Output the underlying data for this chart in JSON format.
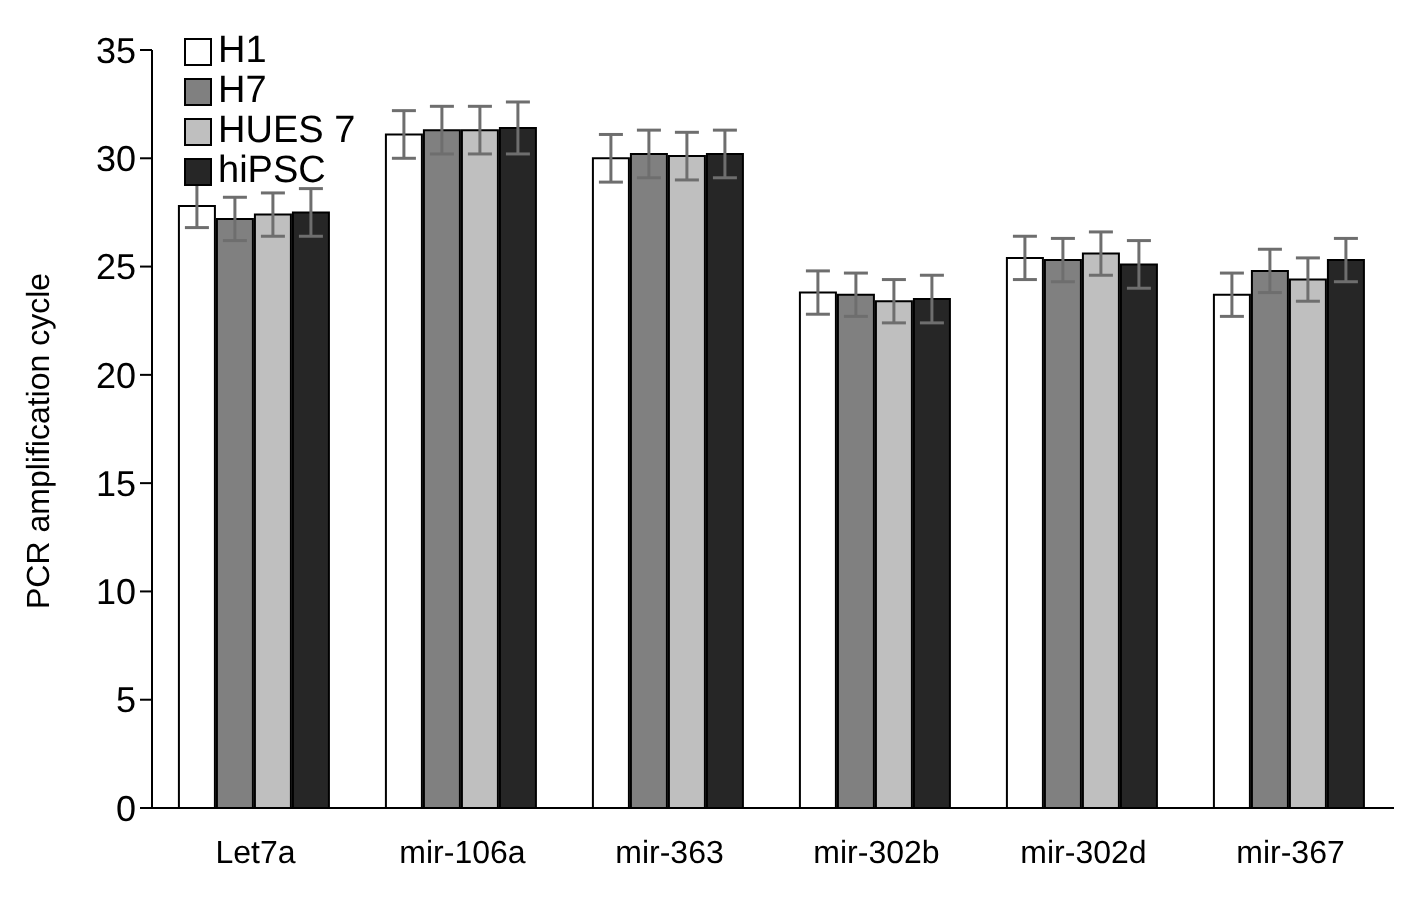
{
  "chart_data": {
    "type": "bar",
    "ylabel": "PCR amplification cycle",
    "categories": [
      "Let7a",
      "mir-106a",
      "mir-363",
      "mir-302b",
      "mir-302d",
      "mir-367"
    ],
    "series": [
      {
        "name": "H1",
        "color": "#ffffff",
        "values": [
          27.8,
          31.1,
          30.0,
          23.8,
          25.4,
          23.7
        ],
        "errors": [
          1.0,
          1.1,
          1.1,
          1.0,
          1.0,
          1.0
        ]
      },
      {
        "name": "H7",
        "color": "#808080",
        "values": [
          27.2,
          31.3,
          30.2,
          23.7,
          25.3,
          24.8
        ],
        "errors": [
          1.0,
          1.1,
          1.1,
          1.0,
          1.0,
          1.0
        ]
      },
      {
        "name": "HUES 7",
        "color": "#bfbfbf",
        "values": [
          27.4,
          31.3,
          30.1,
          23.4,
          25.6,
          24.4
        ],
        "errors": [
          1.0,
          1.1,
          1.1,
          1.0,
          1.0,
          1.0
        ]
      },
      {
        "name": "hiPSC",
        "color": "#262626",
        "values": [
          27.5,
          31.4,
          30.2,
          23.5,
          25.1,
          25.3
        ],
        "errors": [
          1.1,
          1.2,
          1.1,
          1.1,
          1.1,
          1.0
        ]
      }
    ],
    "ylim": [
      0,
      35
    ],
    "yticks": [
      0,
      5,
      10,
      15,
      20,
      25,
      30,
      35
    ],
    "grid": false,
    "legend": "top left"
  }
}
